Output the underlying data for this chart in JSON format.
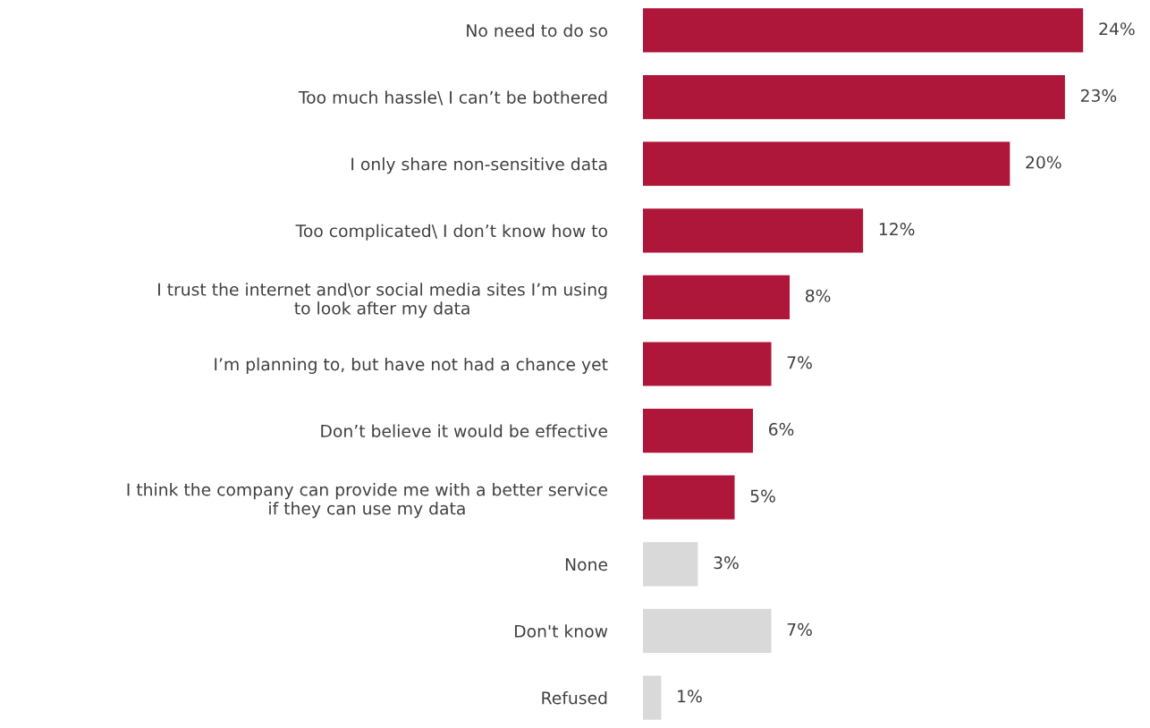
{
  "chart_data": {
    "type": "bar",
    "orientation": "horizontal",
    "data_labels": true,
    "value_labels": [
      "24%",
      "23%",
      "20%",
      "12%",
      "8%",
      "7%",
      "6%",
      "5%",
      "3%",
      "7%",
      "1%"
    ],
    "categories": [
      "No need to do so",
      "Too much hassle\\ I can’t be bothered",
      "I only share non-sensitive data",
      "Too complicated\\ I don’t know how to",
      "I trust the internet and\\or social media sites I’m using\nto look after my data",
      "I’m planning to, but have not had a chance yet",
      "Don’t believe it would be effective",
      "I think the company can provide me with a better service\nif they can use my data",
      "None",
      "Don't know",
      "Refused"
    ],
    "values": [
      24,
      23,
      20,
      12,
      8,
      7,
      6,
      5,
      3,
      7,
      1
    ],
    "colors": [
      "#ae1739",
      "#ae1739",
      "#ae1739",
      "#ae1739",
      "#ae1739",
      "#ae1739",
      "#ae1739",
      "#ae1739",
      "#d9d9d9",
      "#d9d9d9",
      "#d9d9d9"
    ],
    "grid": false,
    "legend": false
  }
}
